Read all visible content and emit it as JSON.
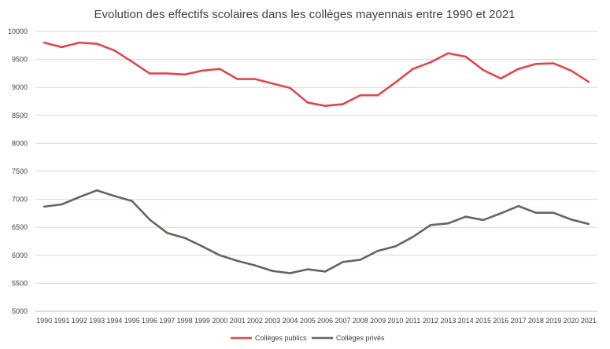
{
  "chart_data": {
    "type": "line",
    "title": "Evolution des effectifs scolaires dans les collèges mayennais entre 1990 et 2021",
    "xlabel": "",
    "ylabel": "",
    "x": [
      "1990",
      "1991",
      "1992",
      "1993",
      "1994",
      "1995",
      "1996",
      "1997",
      "1998",
      "1999",
      "2000",
      "2001",
      "2002",
      "2003",
      "2004",
      "2005",
      "2006",
      "2007",
      "2008",
      "2009",
      "2010",
      "2011",
      "2012",
      "2013",
      "2014",
      "2015",
      "2016",
      "2017",
      "2018",
      "2019",
      "2020",
      "2021"
    ],
    "ylim": [
      5000,
      10000
    ],
    "yticks": [
      5000,
      5500,
      6000,
      6500,
      7000,
      7500,
      8000,
      8500,
      9000,
      9500,
      10000
    ],
    "grid": true,
    "legend_position": "bottom",
    "series": [
      {
        "name": "Collèges publics",
        "color": "#e0474c",
        "values": [
          9800,
          9720,
          9800,
          9780,
          9660,
          9460,
          9250,
          9250,
          9230,
          9300,
          9330,
          9150,
          9150,
          9070,
          8990,
          8730,
          8670,
          8700,
          8860,
          8860,
          9090,
          9330,
          9450,
          9610,
          9550,
          9310,
          9160,
          9330,
          9420,
          9430,
          9300,
          9100
        ]
      },
      {
        "name": "Collèges privés",
        "color": "#6b625b",
        "values": [
          6870,
          6910,
          7040,
          7160,
          7060,
          6970,
          6640,
          6400,
          6310,
          6160,
          6000,
          5900,
          5820,
          5720,
          5680,
          5750,
          5710,
          5880,
          5920,
          6080,
          6160,
          6330,
          6540,
          6570,
          6690,
          6630,
          6750,
          6880,
          6760,
          6760,
          6640,
          6560
        ]
      }
    ]
  }
}
